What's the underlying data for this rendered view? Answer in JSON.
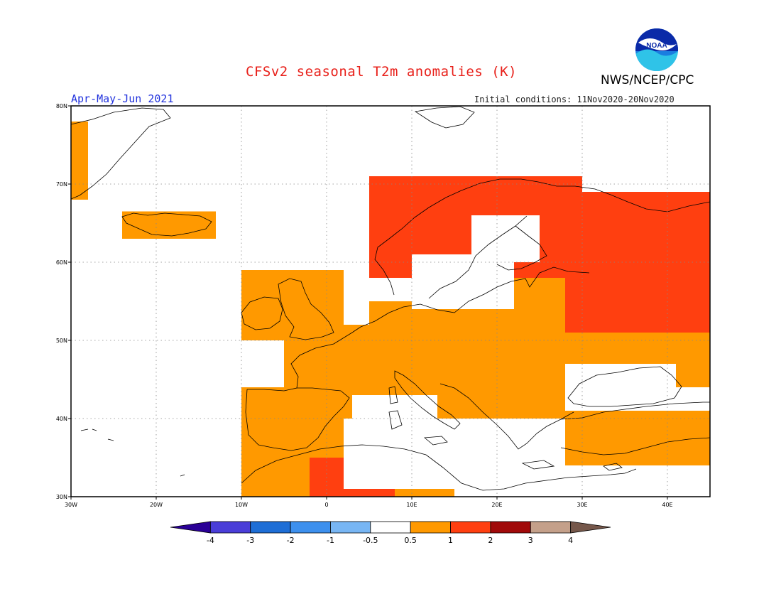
{
  "header": {
    "title": "CFSv2 seasonal T2m anomalies (K)",
    "agency": "NWS/NCEP/CPC",
    "period": "Apr-May-Jun 2021",
    "initial_conditions": "Initial conditions: 11Nov2020-20Nov2020",
    "logo_text": "NOAA"
  },
  "map": {
    "lon_range": [
      -30,
      45
    ],
    "lat_range": [
      30,
      80
    ],
    "lon_ticks": [
      {
        "value": -30,
        "label": "30W"
      },
      {
        "value": -20,
        "label": "20W"
      },
      {
        "value": -10,
        "label": "10W"
      },
      {
        "value": 0,
        "label": "0"
      },
      {
        "value": 10,
        "label": "10E"
      },
      {
        "value": 20,
        "label": "20E"
      },
      {
        "value": 30,
        "label": "30E"
      },
      {
        "value": 40,
        "label": "40E"
      }
    ],
    "lat_ticks": [
      {
        "value": 30,
        "label": "30N"
      },
      {
        "value": 40,
        "label": "40N"
      },
      {
        "value": 50,
        "label": "50N"
      },
      {
        "value": 60,
        "label": "60N"
      },
      {
        "value": 70,
        "label": "70N"
      },
      {
        "value": 80,
        "label": "80N"
      }
    ],
    "grid": "dotted",
    "anomaly_regions": [
      {
        "name": "North Africa",
        "level": 1,
        "lon": [
          -10,
          15
        ],
        "lat": [
          30,
          37
        ]
      },
      {
        "name": "North Africa core",
        "level": 2,
        "lon": [
          -2,
          8
        ],
        "lat": [
          30,
          35
        ]
      },
      {
        "name": "Iberia",
        "level": 1,
        "lon": [
          -10,
          3
        ],
        "lat": [
          36,
          44
        ]
      },
      {
        "name": "Western Europe",
        "level": 1,
        "lon": [
          -5,
          20
        ],
        "lat": [
          43,
          52
        ]
      },
      {
        "name": "Central Europe",
        "level": 1,
        "lon": [
          5,
          28
        ],
        "lat": [
          47,
          55
        ]
      },
      {
        "name": "British Isles",
        "level": 1,
        "lon": [
          -10,
          2
        ],
        "lat": [
          50,
          59
        ]
      },
      {
        "name": "Eastern Europe",
        "level": 1,
        "lon": [
          20,
          45
        ],
        "lat": [
          44,
          59
        ]
      },
      {
        "name": "Balkans",
        "level": 1,
        "lon": [
          13,
          30
        ],
        "lat": [
          38,
          46
        ]
      },
      {
        "name": "Anatolia",
        "level": 1,
        "lon": [
          26,
          45
        ],
        "lat": [
          34,
          41
        ]
      },
      {
        "name": "Scandinavia",
        "level": 2,
        "lon": [
          5,
          30
        ],
        "lat": [
          58,
          71
        ]
      },
      {
        "name": "NW Russia",
        "level": 2,
        "lon": [
          28,
          45
        ],
        "lat": [
          51,
          69
        ]
      },
      {
        "name": "Iceland",
        "level": 1,
        "lon": [
          -24,
          -13
        ],
        "lat": [
          63,
          66.5
        ]
      },
      {
        "name": "East Greenland",
        "level": 1,
        "lon": [
          -30,
          -28
        ],
        "lat": [
          68,
          78
        ]
      }
    ],
    "neutral_regions": [
      {
        "name": "Mediterranean Sea",
        "lon": [
          2,
          28
        ],
        "lat": [
          31,
          40
        ]
      },
      {
        "name": "Black Sea",
        "lon": [
          28,
          41
        ],
        "lat": [
          41,
          47
        ]
      },
      {
        "name": "Baltic Sea",
        "lon": [
          10,
          22
        ],
        "lat": [
          54,
          61
        ]
      },
      {
        "name": "Gulf of Bothnia",
        "lon": [
          17,
          25
        ],
        "lat": [
          60,
          66
        ]
      }
    ]
  },
  "colorbar": {
    "boundaries": [
      "-4",
      "-3",
      "-2",
      "-1",
      "-0.5",
      "0.5",
      "1",
      "2",
      "3",
      "4"
    ],
    "colors": [
      "#2a0096",
      "#4a3ed8",
      "#1e6ed6",
      "#3d90ee",
      "#78b6f4",
      "#ffffff",
      "#ff9900",
      "#ff3f10",
      "#a10a0a",
      "#c4a08a",
      "#75574a"
    ]
  }
}
